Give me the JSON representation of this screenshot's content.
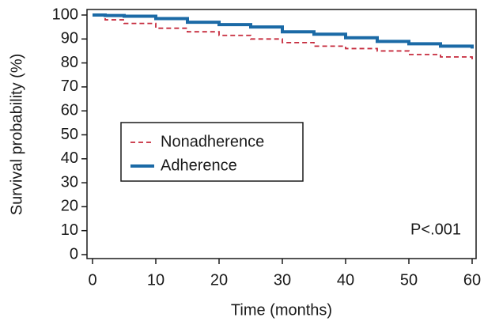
{
  "chart_data": {
    "type": "line",
    "step": true,
    "x_label": "Time (months)",
    "y_label": "Survival probability (%)",
    "annotation": "P<.001",
    "x": [
      0,
      2,
      5,
      10,
      15,
      20,
      25,
      30,
      35,
      40,
      45,
      50,
      55,
      60
    ],
    "series": [
      {
        "name": "Nonadherence",
        "color": "#c62a3c",
        "dash": true,
        "values": [
          100,
          98,
          96.5,
          94.5,
          93,
          91.5,
          90,
          88.5,
          87,
          86,
          85,
          83.5,
          82.5,
          81.5
        ]
      },
      {
        "name": "Adherence",
        "color": "#1b6aa6",
        "dash": false,
        "values": [
          100,
          99.8,
          99.5,
          98.5,
          97,
          96,
          95,
          93,
          92,
          90.5,
          89,
          88,
          87,
          86
        ]
      }
    ],
    "xlim": [
      0,
      60
    ],
    "xticks": [
      0,
      10,
      20,
      30,
      40,
      50,
      60
    ],
    "ylim": [
      0,
      100
    ],
    "yticks": [
      0,
      10,
      20,
      30,
      40,
      50,
      60,
      70,
      80,
      90,
      100
    ],
    "legend": "left"
  }
}
